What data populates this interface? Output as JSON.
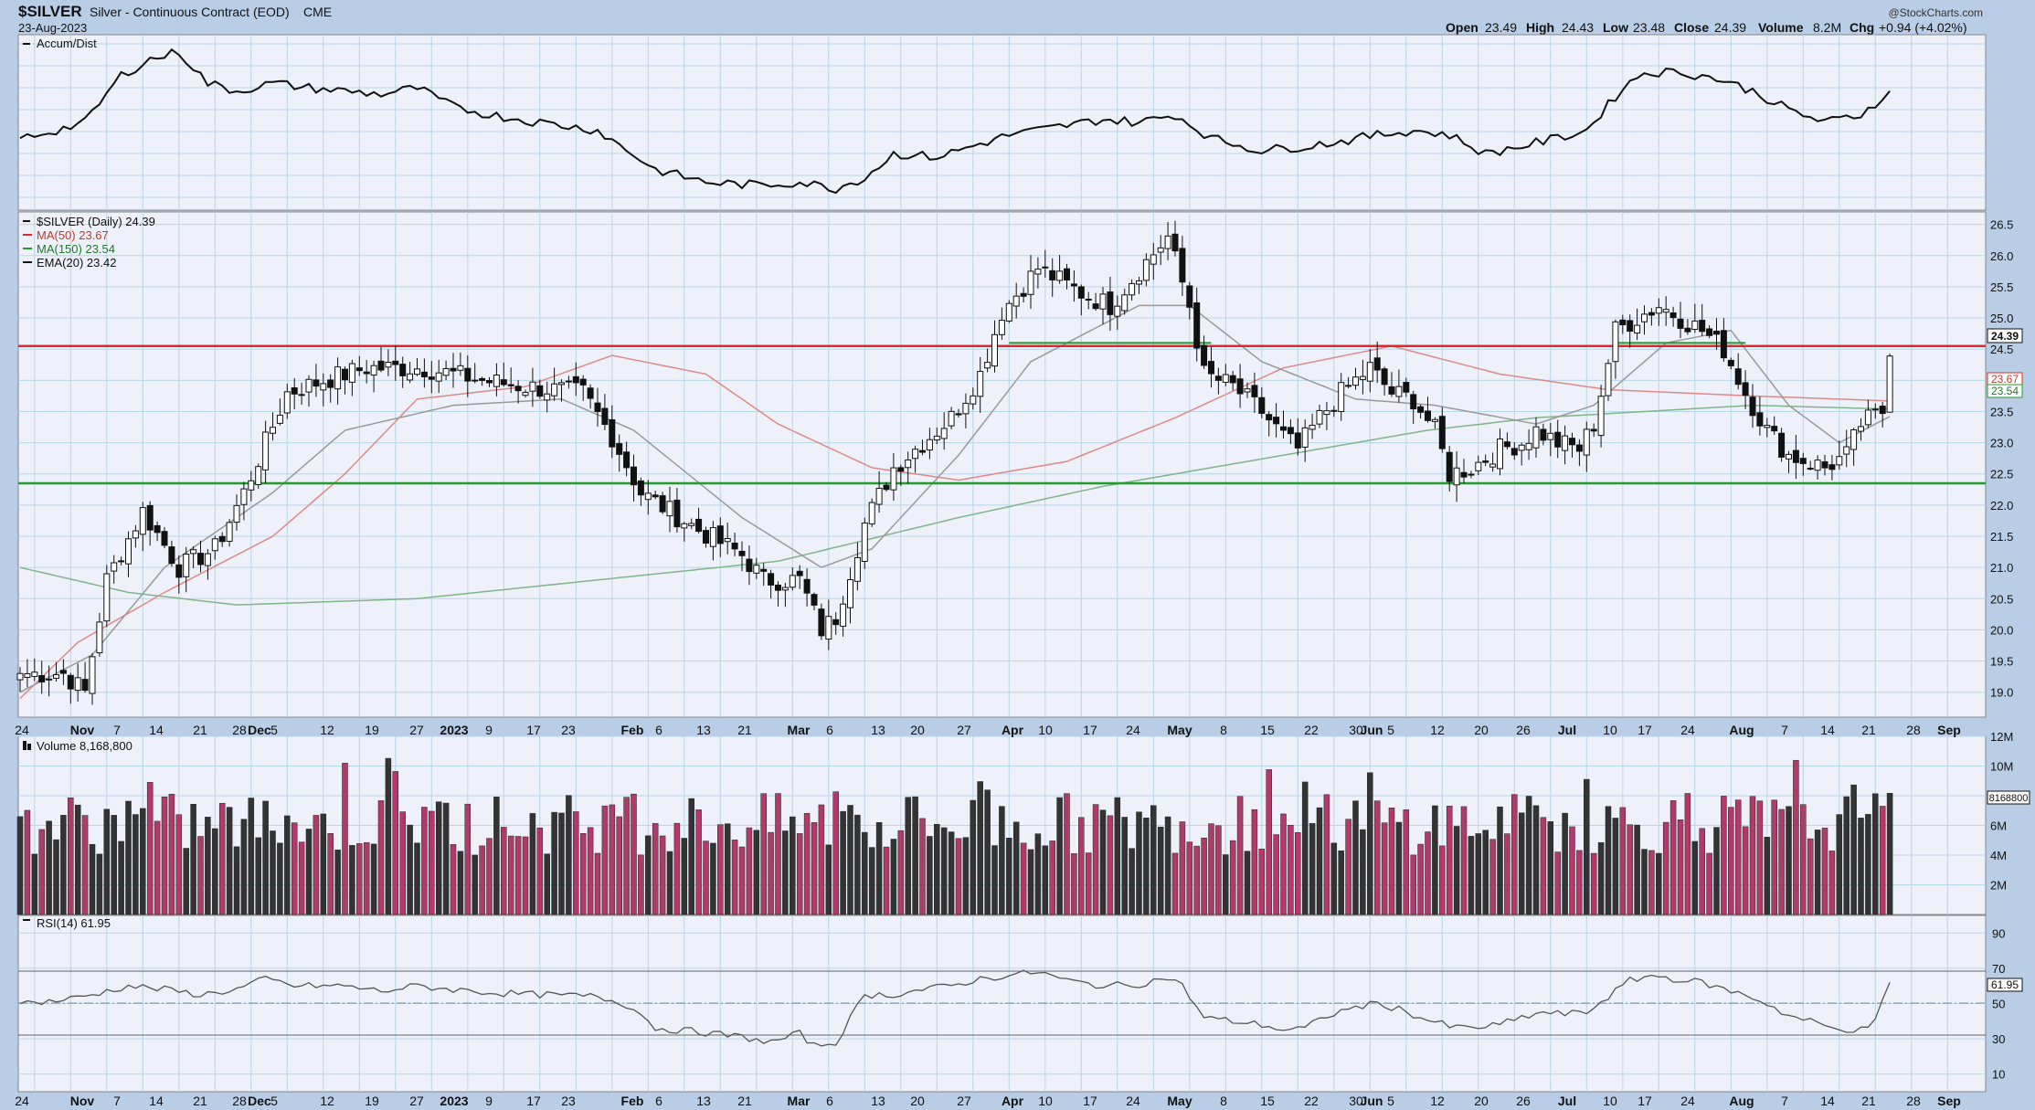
{
  "header": {
    "symbol": "$SILVER",
    "description": "Silver - Continuous Contract (EOD)",
    "exchange": "CME",
    "date": "23-Aug-2023",
    "copyright": "@StockCharts.com",
    "quote": {
      "open_label": "Open",
      "open": "23.49",
      "high_label": "High",
      "high": "24.43",
      "low_label": "Low",
      "low": "23.48",
      "close_label": "Close",
      "close": "24.39",
      "volume_label": "Volume",
      "volume": "8.2M",
      "chg_label": "Chg",
      "chg": "+0.94 (+4.02%)"
    }
  },
  "panels": {
    "accum": {
      "label": "Accum/Dist"
    },
    "price": {
      "label": "$SILVER (Daily) 24.39",
      "ma50_label": "MA(50) 23.67",
      "ma150_label": "MA(150) 23.54",
      "ema20_label": "EMA(20) 23.42",
      "last_tag": "24.39",
      "ma50_tag": "23.67",
      "ma150_tag": "23.54"
    },
    "volume": {
      "label": "Volume 8,168,800",
      "last_tag": "8168800"
    },
    "rsi": {
      "label": "RSI(14) 61.95",
      "last_tag": "61.95"
    }
  },
  "colors": {
    "background": "#b9cde6",
    "panel": "#eef0fa",
    "grid": "#b6d6ea",
    "up_volume": "#333333",
    "down_volume": "#b03a68",
    "ma50": "#e08888",
    "ma150": "#7fb58a",
    "ema20": "#999999",
    "resistance": "#e3262a",
    "support": "#1e9b2a"
  },
  "chart_data": {
    "type": "candlestick",
    "title": "$SILVER Silver - Continuous Contract (EOD) CME",
    "x_tick_labels": [
      "24",
      "Nov",
      "7",
      "14",
      "21",
      "28",
      "Dec",
      "5",
      "12",
      "19",
      "27",
      "2023",
      "9",
      "17",
      "23",
      "Feb",
      "6",
      "13",
      "21",
      "Mar",
      "6",
      "13",
      "20",
      "27",
      "Apr",
      "10",
      "17",
      "24",
      "May",
      "8",
      "15",
      "22",
      "30",
      "Jun",
      "5",
      "12",
      "20",
      "26",
      "Jul",
      "10",
      "17",
      "24",
      "Aug",
      "7",
      "14",
      "21",
      "28",
      "Sep"
    ],
    "price_axis": {
      "ylim": [
        18.6,
        26.7
      ],
      "ticks": [
        19.0,
        19.5,
        20.0,
        20.5,
        21.0,
        21.5,
        22.0,
        22.5,
        23.0,
        23.5,
        24.0,
        24.5,
        25.0,
        25.5,
        26.0,
        26.5
      ]
    },
    "volume_axis": {
      "ylim": [
        0,
        12000000
      ],
      "tick_labels": [
        "2M",
        "4M",
        "6M",
        "8M",
        "10M",
        "12M"
      ]
    },
    "rsi_axis": {
      "ylim": [
        0,
        100
      ],
      "ticks": [
        10,
        30,
        50,
        70,
        90
      ]
    },
    "horizontal_lines": [
      {
        "name": "resistance",
        "value": 24.55,
        "color": "#e3262a"
      },
      {
        "name": "support",
        "value": 22.35,
        "color": "#1e9b2a"
      },
      {
        "name": "breakout",
        "value": 24.6,
        "color": "#1e9b2a",
        "segments": [
          "Apr–May",
          "Jul–Aug"
        ]
      }
    ],
    "waypoints": {
      "close": [
        [
          0,
          19.3
        ],
        [
          6,
          19.3
        ],
        [
          9,
          19.0
        ],
        [
          12,
          20.8
        ],
        [
          17,
          21.9
        ],
        [
          22,
          21.0
        ],
        [
          27,
          21.3
        ],
        [
          31,
          22.2
        ],
        [
          37,
          23.8
        ],
        [
          42,
          24.0
        ],
        [
          48,
          24.2
        ],
        [
          56,
          24.2
        ],
        [
          64,
          24.0
        ],
        [
          70,
          23.9
        ],
        [
          78,
          23.8
        ],
        [
          82,
          23.1
        ],
        [
          86,
          22.2
        ],
        [
          94,
          21.6
        ],
        [
          100,
          21.2
        ],
        [
          103,
          20.8
        ],
        [
          108,
          20.8
        ],
        [
          111,
          20.0
        ],
        [
          113,
          20.2
        ],
        [
          117,
          21.7
        ],
        [
          121,
          22.6
        ],
        [
          125,
          23.0
        ],
        [
          129,
          23.4
        ],
        [
          133,
          24.1
        ],
        [
          136,
          25.1
        ],
        [
          141,
          25.8
        ],
        [
          147,
          25.4
        ],
        [
          151,
          25.2
        ],
        [
          156,
          25.9
        ],
        [
          159,
          26.3
        ],
        [
          162,
          25.2
        ],
        [
          164,
          24.1
        ],
        [
          168,
          23.9
        ],
        [
          172,
          23.5
        ],
        [
          175,
          23.1
        ],
        [
          177,
          22.9
        ],
        [
          180,
          23.4
        ],
        [
          183,
          23.8
        ],
        [
          187,
          24.2
        ],
        [
          190,
          23.8
        ],
        [
          193,
          23.7
        ],
        [
          196,
          23.2
        ],
        [
          198,
          22.5
        ],
        [
          201,
          22.6
        ],
        [
          205,
          22.9
        ],
        [
          208,
          23.0
        ],
        [
          210,
          23.2
        ],
        [
          213,
          23.0
        ],
        [
          216,
          22.9
        ],
        [
          218,
          23.3
        ],
        [
          221,
          24.8
        ],
        [
          224,
          25.0
        ],
        [
          227,
          25.2
        ],
        [
          230,
          25.0
        ],
        [
          233,
          24.8
        ],
        [
          236,
          24.5
        ],
        [
          239,
          23.8
        ],
        [
          242,
          23.2
        ],
        [
          245,
          22.8
        ],
        [
          250,
          22.6
        ],
        [
          253,
          22.8
        ],
        [
          255,
          23.3
        ],
        [
          258,
          23.5
        ],
        [
          259,
          24.39
        ]
      ],
      "ma50": [
        [
          0,
          18.9
        ],
        [
          8,
          19.8
        ],
        [
          20,
          20.6
        ],
        [
          35,
          21.5
        ],
        [
          45,
          22.5
        ],
        [
          55,
          23.7
        ],
        [
          70,
          23.9
        ],
        [
          82,
          24.4
        ],
        [
          95,
          24.1
        ],
        [
          105,
          23.3
        ],
        [
          118,
          22.6
        ],
        [
          130,
          22.4
        ],
        [
          145,
          22.7
        ],
        [
          160,
          23.4
        ],
        [
          175,
          24.2
        ],
        [
          190,
          24.55
        ],
        [
          205,
          24.1
        ],
        [
          220,
          23.85
        ],
        [
          240,
          23.75
        ],
        [
          259,
          23.67
        ]
      ],
      "ma150": [
        [
          0,
          21.0
        ],
        [
          15,
          20.6
        ],
        [
          30,
          20.4
        ],
        [
          55,
          20.5
        ],
        [
          80,
          20.8
        ],
        [
          105,
          21.1
        ],
        [
          130,
          21.8
        ],
        [
          150,
          22.3
        ],
        [
          165,
          22.6
        ],
        [
          180,
          22.9
        ],
        [
          195,
          23.2
        ],
        [
          210,
          23.4
        ],
        [
          225,
          23.5
        ],
        [
          240,
          23.6
        ],
        [
          259,
          23.54
        ]
      ],
      "ema20": [
        [
          0,
          19.0
        ],
        [
          10,
          19.6
        ],
        [
          20,
          21.0
        ],
        [
          35,
          22.2
        ],
        [
          45,
          23.2
        ],
        [
          60,
          23.6
        ],
        [
          75,
          23.7
        ],
        [
          85,
          23.2
        ],
        [
          100,
          21.8
        ],
        [
          111,
          21.0
        ],
        [
          118,
          21.3
        ],
        [
          130,
          22.8
        ],
        [
          140,
          24.3
        ],
        [
          155,
          25.2
        ],
        [
          162,
          25.2
        ],
        [
          172,
          24.3
        ],
        [
          185,
          23.7
        ],
        [
          196,
          23.6
        ],
        [
          210,
          23.3
        ],
        [
          218,
          23.6
        ],
        [
          228,
          24.6
        ],
        [
          237,
          24.8
        ],
        [
          245,
          23.6
        ],
        [
          252,
          23.0
        ],
        [
          259,
          23.42
        ]
      ],
      "accum_dist": [
        [
          0,
          0.4
        ],
        [
          5,
          0.45
        ],
        [
          9,
          0.5
        ],
        [
          14,
          0.8
        ],
        [
          18,
          0.9
        ],
        [
          22,
          0.95
        ],
        [
          26,
          0.75
        ],
        [
          30,
          0.7
        ],
        [
          35,
          0.75
        ],
        [
          40,
          0.72
        ],
        [
          45,
          0.7
        ],
        [
          50,
          0.68
        ],
        [
          55,
          0.72
        ],
        [
          60,
          0.6
        ],
        [
          65,
          0.55
        ],
        [
          72,
          0.5
        ],
        [
          80,
          0.45
        ],
        [
          88,
          0.2
        ],
        [
          95,
          0.12
        ],
        [
          102,
          0.1
        ],
        [
          108,
          0.12
        ],
        [
          113,
          0.08
        ],
        [
          117,
          0.15
        ],
        [
          121,
          0.3
        ],
        [
          127,
          0.28
        ],
        [
          132,
          0.35
        ],
        [
          137,
          0.42
        ],
        [
          145,
          0.48
        ],
        [
          150,
          0.52
        ],
        [
          155,
          0.5
        ],
        [
          160,
          0.55
        ],
        [
          165,
          0.4
        ],
        [
          172,
          0.32
        ],
        [
          178,
          0.35
        ],
        [
          183,
          0.38
        ],
        [
          188,
          0.42
        ],
        [
          193,
          0.45
        ],
        [
          198,
          0.42
        ],
        [
          203,
          0.3
        ],
        [
          208,
          0.35
        ],
        [
          213,
          0.4
        ],
        [
          217,
          0.45
        ],
        [
          222,
          0.72
        ],
        [
          225,
          0.82
        ],
        [
          230,
          0.82
        ],
        [
          235,
          0.78
        ],
        [
          240,
          0.7
        ],
        [
          245,
          0.58
        ],
        [
          250,
          0.5
        ],
        [
          255,
          0.55
        ],
        [
          259,
          0.7
        ]
      ],
      "rsi": [
        [
          0,
          50
        ],
        [
          6,
          52
        ],
        [
          10,
          55
        ],
        [
          15,
          60
        ],
        [
          20,
          58
        ],
        [
          25,
          55
        ],
        [
          30,
          58
        ],
        [
          34,
          64
        ],
        [
          38,
          60
        ],
        [
          45,
          60
        ],
        [
          50,
          57
        ],
        [
          55,
          60
        ],
        [
          60,
          58
        ],
        [
          66,
          56
        ],
        [
          72,
          55
        ],
        [
          80,
          54
        ],
        [
          85,
          48
        ],
        [
          88,
          36
        ],
        [
          94,
          34
        ],
        [
          100,
          31
        ],
        [
          104,
          28
        ],
        [
          108,
          33
        ],
        [
          110,
          26
        ],
        [
          113,
          28
        ],
        [
          117,
          55
        ],
        [
          121,
          55
        ],
        [
          125,
          58
        ],
        [
          129,
          60
        ],
        [
          133,
          64
        ],
        [
          137,
          66
        ],
        [
          141,
          68
        ],
        [
          145,
          63
        ],
        [
          150,
          60
        ],
        [
          155,
          61
        ],
        [
          159,
          65
        ],
        [
          161,
          60
        ],
        [
          164,
          42
        ],
        [
          168,
          40
        ],
        [
          172,
          38
        ],
        [
          175,
          35
        ],
        [
          178,
          36
        ],
        [
          181,
          43
        ],
        [
          185,
          48
        ],
        [
          188,
          50
        ],
        [
          191,
          47
        ],
        [
          194,
          42
        ],
        [
          198,
          37
        ],
        [
          201,
          36
        ],
        [
          205,
          38
        ],
        [
          208,
          42
        ],
        [
          211,
          45
        ],
        [
          214,
          44
        ],
        [
          217,
          45
        ],
        [
          220,
          54
        ],
        [
          223,
          63
        ],
        [
          226,
          66
        ],
        [
          229,
          64
        ],
        [
          233,
          62
        ],
        [
          236,
          58
        ],
        [
          239,
          55
        ],
        [
          242,
          50
        ],
        [
          245,
          43
        ],
        [
          248,
          40
        ],
        [
          251,
          36
        ],
        [
          255,
          35
        ],
        [
          257,
          40
        ],
        [
          259,
          61.95
        ]
      ]
    }
  }
}
